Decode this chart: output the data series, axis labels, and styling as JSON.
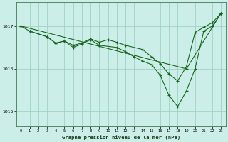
{
  "title": "Graphe pression niveau de la mer (hPa)",
  "bg_color": "#cceee8",
  "grid_color": "#99ccbb",
  "line_color": "#1a6620",
  "xlim": [
    -0.5,
    23.5
  ],
  "ylim": [
    1014.65,
    1017.55
  ],
  "yticks": [
    1015,
    1016,
    1017
  ],
  "xticks": [
    0,
    1,
    2,
    3,
    4,
    5,
    6,
    7,
    8,
    9,
    10,
    11,
    12,
    13,
    14,
    15,
    16,
    17,
    18,
    19,
    20,
    21,
    22,
    23
  ],
  "line_diagonal": {
    "x": [
      0,
      19,
      23
    ],
    "y": [
      1017.0,
      1016.0,
      1017.3
    ]
  },
  "line_upper": {
    "x": [
      0,
      1,
      3,
      4,
      5,
      6,
      7,
      8,
      9,
      10,
      11,
      12,
      14,
      15,
      16,
      17,
      18,
      19,
      20,
      21,
      22,
      23
    ],
    "y": [
      1017.0,
      1016.88,
      1016.75,
      1016.6,
      1016.65,
      1016.55,
      1016.6,
      1016.7,
      1016.62,
      1016.68,
      1016.62,
      1016.55,
      1016.45,
      1016.28,
      1016.12,
      1015.88,
      1015.72,
      1016.05,
      1016.85,
      1016.97,
      1017.08,
      1017.3
    ]
  },
  "line_lower": {
    "x": [
      1,
      3,
      4,
      5,
      6,
      7,
      8,
      9,
      11,
      12,
      13,
      14,
      15,
      16,
      17,
      18,
      19,
      20,
      21,
      22,
      23
    ],
    "y": [
      1016.88,
      1016.75,
      1016.6,
      1016.65,
      1016.5,
      1016.58,
      1016.68,
      1016.55,
      1016.5,
      1016.4,
      1016.28,
      1016.18,
      1016.1,
      1015.85,
      1015.38,
      1015.12,
      1015.48,
      1016.0,
      1016.88,
      1017.0,
      1017.3
    ]
  }
}
